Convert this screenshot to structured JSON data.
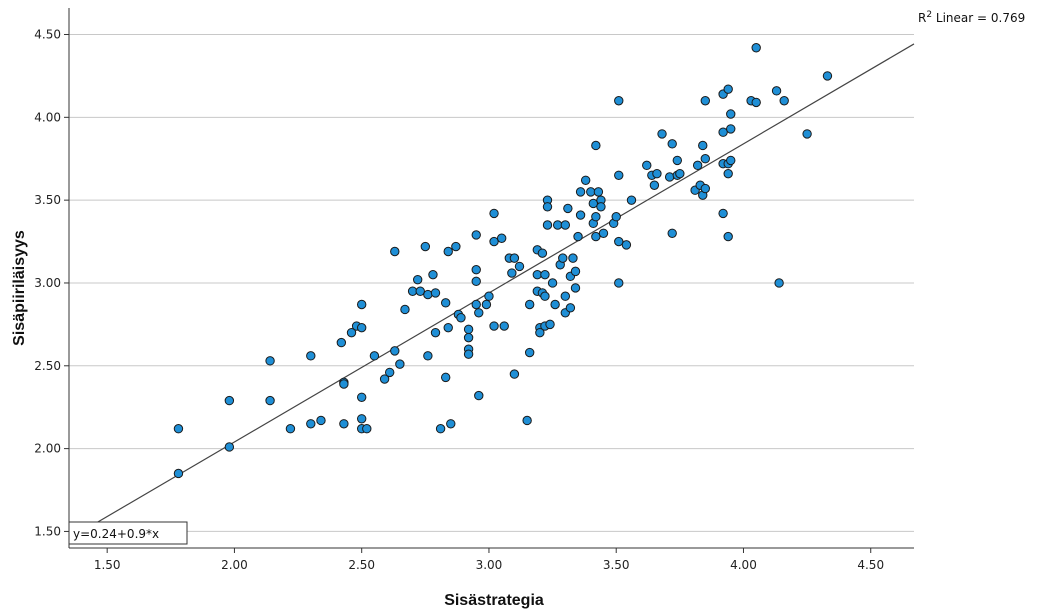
{
  "chart_data": {
    "type": "scatter",
    "title": "",
    "xlabel": "Sisästrategia",
    "ylabel": "Sisäpiiriläisyys",
    "xlim": [
      1.35,
      4.67
    ],
    "ylim": [
      1.4,
      4.66
    ],
    "x_ticks": [
      "1.50",
      "2.00",
      "2.50",
      "3.00",
      "3.50",
      "4.00",
      "4.50"
    ],
    "y_ticks": [
      "1.50",
      "2.00",
      "2.50",
      "3.00",
      "3.50",
      "4.00",
      "4.50"
    ],
    "grid": "horizontal",
    "r2_label": "R² Linear = 0.769",
    "fit_label": "y=0.24+0.9*x",
    "fit": {
      "intercept": 0.24,
      "slope": 0.9
    },
    "marker_color": "#1f8fd6",
    "points": [
      [
        1.78,
        2.12
      ],
      [
        1.78,
        1.85
      ],
      [
        1.98,
        2.29
      ],
      [
        1.98,
        2.01
      ],
      [
        2.14,
        2.53
      ],
      [
        2.14,
        2.29
      ],
      [
        2.22,
        2.12
      ],
      [
        2.3,
        2.56
      ],
      [
        2.3,
        2.15
      ],
      [
        2.34,
        2.17
      ],
      [
        2.42,
        2.64
      ],
      [
        2.43,
        2.4
      ],
      [
        2.43,
        2.39
      ],
      [
        2.43,
        2.15
      ],
      [
        2.46,
        2.7
      ],
      [
        2.48,
        2.74
      ],
      [
        2.5,
        2.87
      ],
      [
        2.5,
        2.73
      ],
      [
        2.5,
        2.31
      ],
      [
        2.5,
        2.18
      ],
      [
        2.5,
        2.12
      ],
      [
        2.52,
        2.12
      ],
      [
        2.55,
        2.56
      ],
      [
        2.59,
        2.42
      ],
      [
        2.61,
        2.46
      ],
      [
        2.63,
        3.19
      ],
      [
        2.63,
        2.59
      ],
      [
        2.65,
        2.51
      ],
      [
        2.67,
        2.84
      ],
      [
        2.7,
        2.95
      ],
      [
        2.72,
        3.02
      ],
      [
        2.73,
        2.95
      ],
      [
        2.75,
        3.22
      ],
      [
        2.76,
        2.93
      ],
      [
        2.76,
        2.56
      ],
      [
        2.78,
        3.05
      ],
      [
        2.79,
        2.94
      ],
      [
        2.79,
        2.7
      ],
      [
        2.81,
        2.12
      ],
      [
        2.83,
        2.88
      ],
      [
        2.83,
        2.43
      ],
      [
        2.84,
        3.19
      ],
      [
        2.84,
        2.73
      ],
      [
        2.85,
        2.15
      ],
      [
        2.87,
        3.22
      ],
      [
        2.88,
        2.81
      ],
      [
        2.89,
        2.79
      ],
      [
        2.92,
        2.72
      ],
      [
        2.92,
        2.67
      ],
      [
        2.92,
        2.6
      ],
      [
        2.92,
        2.57
      ],
      [
        2.95,
        3.29
      ],
      [
        2.95,
        3.08
      ],
      [
        2.95,
        3.01
      ],
      [
        2.95,
        2.87
      ],
      [
        2.96,
        2.82
      ],
      [
        2.96,
        2.32
      ],
      [
        2.99,
        2.87
      ],
      [
        3.0,
        2.92
      ],
      [
        3.02,
        3.42
      ],
      [
        3.02,
        3.25
      ],
      [
        3.02,
        2.74
      ],
      [
        3.05,
        3.27
      ],
      [
        3.06,
        2.74
      ],
      [
        3.08,
        3.15
      ],
      [
        3.09,
        3.06
      ],
      [
        3.1,
        2.45
      ],
      [
        3.1,
        3.15
      ],
      [
        3.12,
        3.1
      ],
      [
        3.15,
        2.17
      ],
      [
        3.16,
        2.87
      ],
      [
        3.16,
        2.58
      ],
      [
        3.19,
        3.2
      ],
      [
        3.19,
        3.05
      ],
      [
        3.19,
        2.95
      ],
      [
        3.2,
        2.73
      ],
      [
        3.2,
        2.7
      ],
      [
        3.21,
        3.18
      ],
      [
        3.21,
        2.94
      ],
      [
        3.22,
        3.05
      ],
      [
        3.22,
        2.92
      ],
      [
        3.22,
        2.74
      ],
      [
        3.23,
        3.5
      ],
      [
        3.23,
        3.46
      ],
      [
        3.23,
        3.35
      ],
      [
        3.24,
        2.75
      ],
      [
        3.25,
        3.0
      ],
      [
        3.26,
        2.87
      ],
      [
        3.27,
        3.35
      ],
      [
        3.28,
        3.11
      ],
      [
        3.29,
        3.15
      ],
      [
        3.3,
        3.35
      ],
      [
        3.3,
        2.92
      ],
      [
        3.3,
        2.82
      ],
      [
        3.31,
        3.45
      ],
      [
        3.32,
        3.04
      ],
      [
        3.32,
        2.85
      ],
      [
        3.33,
        3.15
      ],
      [
        3.34,
        3.07
      ],
      [
        3.34,
        2.97
      ],
      [
        3.35,
        3.28
      ],
      [
        3.36,
        3.55
      ],
      [
        3.36,
        3.41
      ],
      [
        3.38,
        3.62
      ],
      [
        3.4,
        3.55
      ],
      [
        3.41,
        3.48
      ],
      [
        3.41,
        3.36
      ],
      [
        3.42,
        3.83
      ],
      [
        3.42,
        3.4
      ],
      [
        3.42,
        3.28
      ],
      [
        3.43,
        3.55
      ],
      [
        3.44,
        3.5
      ],
      [
        3.44,
        3.46
      ],
      [
        3.45,
        3.3
      ],
      [
        3.49,
        3.36
      ],
      [
        3.5,
        3.4
      ],
      [
        3.51,
        4.1
      ],
      [
        3.51,
        3.65
      ],
      [
        3.51,
        3.25
      ],
      [
        3.51,
        3.0
      ],
      [
        3.54,
        3.23
      ],
      [
        3.56,
        3.5
      ],
      [
        3.62,
        3.71
      ],
      [
        3.64,
        3.65
      ],
      [
        3.65,
        3.59
      ],
      [
        3.66,
        3.66
      ],
      [
        3.68,
        3.9
      ],
      [
        3.71,
        3.64
      ],
      [
        3.72,
        3.84
      ],
      [
        3.72,
        3.3
      ],
      [
        3.74,
        3.65
      ],
      [
        3.74,
        3.74
      ],
      [
        3.75,
        3.66
      ],
      [
        3.81,
        3.56
      ],
      [
        3.82,
        3.71
      ],
      [
        3.83,
        3.59
      ],
      [
        3.84,
        3.53
      ],
      [
        3.84,
        3.83
      ],
      [
        3.85,
        4.1
      ],
      [
        3.85,
        3.57
      ],
      [
        3.85,
        3.75
      ],
      [
        3.92,
        4.14
      ],
      [
        3.92,
        3.91
      ],
      [
        3.92,
        3.72
      ],
      [
        3.92,
        3.42
      ],
      [
        3.94,
        4.17
      ],
      [
        3.94,
        3.72
      ],
      [
        3.94,
        3.66
      ],
      [
        3.94,
        3.28
      ],
      [
        3.95,
        4.02
      ],
      [
        3.95,
        3.93
      ],
      [
        3.95,
        3.74
      ],
      [
        4.03,
        4.1
      ],
      [
        4.05,
        4.42
      ],
      [
        4.05,
        4.09
      ],
      [
        4.13,
        4.16
      ],
      [
        4.14,
        3.0
      ],
      [
        4.16,
        4.1
      ],
      [
        4.25,
        3.9
      ],
      [
        4.33,
        4.25
      ]
    ]
  }
}
